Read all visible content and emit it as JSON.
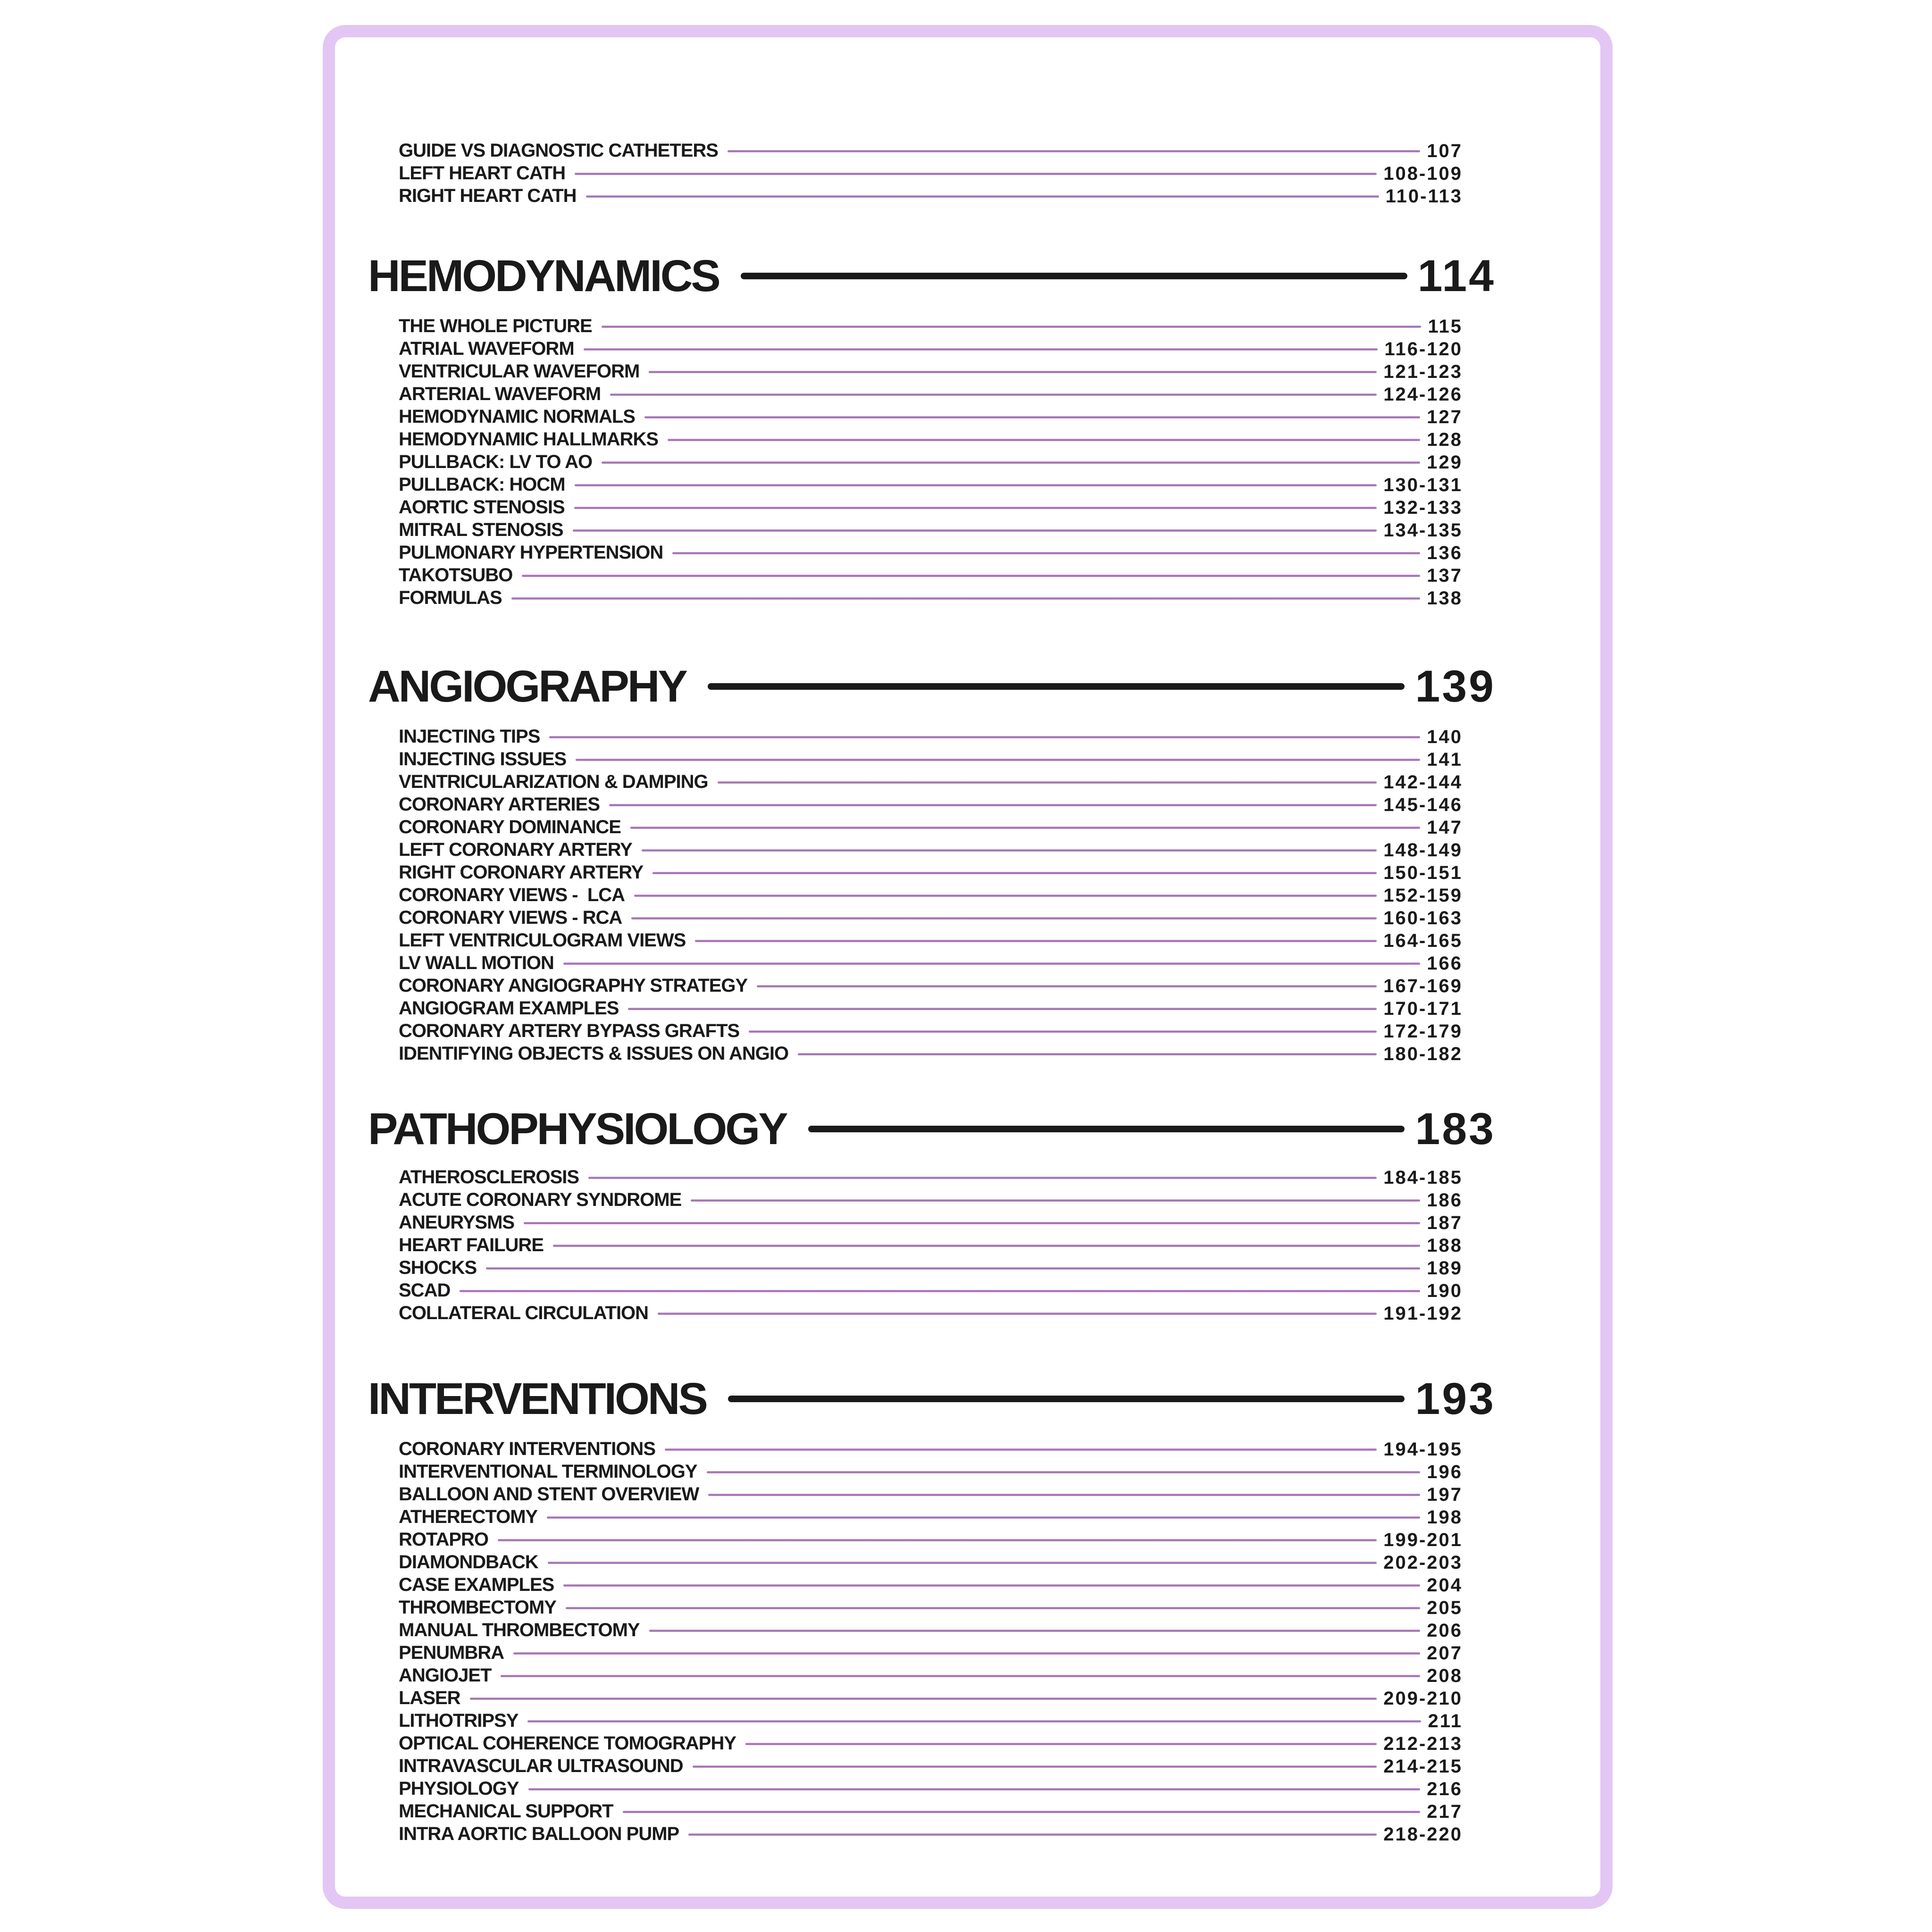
{
  "colors": {
    "background": "#ffffff",
    "frame_border": "#e3c6f4",
    "leader_line": "#9f6fae",
    "header_line": "#1a1a1a",
    "text": "#1a1a1a"
  },
  "toc": {
    "continued_entries": [
      {
        "label": "GUIDE VS DIAGNOSTIC CATHETERS",
        "pages": "107"
      },
      {
        "label": "LEFT HEART CATH",
        "pages": "108-109"
      },
      {
        "label": "RIGHT HEART CATH",
        "pages": "110-113"
      }
    ],
    "sections": [
      {
        "title": "HEMODYNAMICS",
        "page": "114",
        "entries": [
          {
            "label": "THE WHOLE PICTURE",
            "pages": "115"
          },
          {
            "label": "ATRIAL WAVEFORM",
            "pages": "116-120"
          },
          {
            "label": "VENTRICULAR WAVEFORM",
            "pages": "121-123"
          },
          {
            "label": "ARTERIAL WAVEFORM",
            "pages": "124-126"
          },
          {
            "label": "HEMODYNAMIC NORMALS",
            "pages": "127"
          },
          {
            "label": "HEMODYNAMIC HALLMARKS",
            "pages": "128"
          },
          {
            "label": "PULLBACK: LV TO AO",
            "pages": "129"
          },
          {
            "label": "PULLBACK: HOCM",
            "pages": "130-131"
          },
          {
            "label": "AORTIC STENOSIS",
            "pages": "132-133"
          },
          {
            "label": "MITRAL STENOSIS",
            "pages": "134-135"
          },
          {
            "label": "PULMONARY HYPERTENSION",
            "pages": "136"
          },
          {
            "label": "TAKOTSUBO",
            "pages": "137"
          },
          {
            "label": "FORMULAS",
            "pages": "138"
          }
        ]
      },
      {
        "title": "ANGIOGRAPHY",
        "page": "139",
        "entries": [
          {
            "label": "INJECTING TIPS",
            "pages": "140"
          },
          {
            "label": "INJECTING ISSUES",
            "pages": "141"
          },
          {
            "label": "VENTRICULARIZATION & DAMPING",
            "pages": "142-144"
          },
          {
            "label": "CORONARY ARTERIES",
            "pages": "145-146"
          },
          {
            "label": "CORONARY DOMINANCE",
            "pages": "147"
          },
          {
            "label": "LEFT CORONARY ARTERY",
            "pages": "148-149"
          },
          {
            "label": "RIGHT CORONARY ARTERY",
            "pages": "150-151"
          },
          {
            "label": "CORONARY VIEWS -  LCA",
            "pages": "152-159"
          },
          {
            "label": "CORONARY VIEWS - RCA",
            "pages": "160-163"
          },
          {
            "label": "LEFT VENTRICULOGRAM VIEWS",
            "pages": "164-165"
          },
          {
            "label": "LV WALL MOTION",
            "pages": "166"
          },
          {
            "label": "CORONARY ANGIOGRAPHY STRATEGY",
            "pages": "167-169"
          },
          {
            "label": "ANGIOGRAM EXAMPLES",
            "pages": "170-171"
          },
          {
            "label": "CORONARY ARTERY BYPASS GRAFTS",
            "pages": "172-179"
          },
          {
            "label": "IDENTIFYING OBJECTS & ISSUES ON ANGIO",
            "pages": "180-182"
          }
        ]
      },
      {
        "title": "PATHOPHYSIOLOGY",
        "page": "183",
        "entries": [
          {
            "label": "ATHEROSCLEROSIS",
            "pages": "184-185"
          },
          {
            "label": "ACUTE CORONARY SYNDROME",
            "pages": "186"
          },
          {
            "label": "ANEURYSMS",
            "pages": "187"
          },
          {
            "label": "HEART FAILURE",
            "pages": "188"
          },
          {
            "label": "SHOCKS",
            "pages": "189"
          },
          {
            "label": "SCAD",
            "pages": "190"
          },
          {
            "label": "COLLATERAL CIRCULATION",
            "pages": "191-192"
          }
        ]
      },
      {
        "title": "INTERVENTIONS",
        "page": "193",
        "entries": [
          {
            "label": "CORONARY INTERVENTIONS",
            "pages": "194-195"
          },
          {
            "label": "INTERVENTIONAL TERMINOLOGY",
            "pages": "196"
          },
          {
            "label": "BALLOON AND STENT OVERVIEW",
            "pages": "197"
          },
          {
            "label": "ATHERECTOMY",
            "pages": "198"
          },
          {
            "label": "ROTAPRO",
            "pages": "199-201"
          },
          {
            "label": "DIAMONDBACK",
            "pages": "202-203"
          },
          {
            "label": "CASE EXAMPLES",
            "pages": "204"
          },
          {
            "label": "THROMBECTOMY",
            "pages": "205"
          },
          {
            "label": "MANUAL THROMBECTOMY",
            "pages": "206"
          },
          {
            "label": "PENUMBRA",
            "pages": "207"
          },
          {
            "label": "ANGIOJET",
            "pages": "208"
          },
          {
            "label": "LASER",
            "pages": "209-210"
          },
          {
            "label": "LITHOTRIPSY",
            "pages": "211"
          },
          {
            "label": "OPTICAL COHERENCE TOMOGRAPHY",
            "pages": "212-213"
          },
          {
            "label": "INTRAVASCULAR ULTRASOUND",
            "pages": "214-215"
          },
          {
            "label": "PHYSIOLOGY",
            "pages": "216"
          },
          {
            "label": "MECHANICAL SUPPORT",
            "pages": "217"
          },
          {
            "label": "INTRA AORTIC BALLOON PUMP",
            "pages": "218-220"
          }
        ]
      }
    ]
  }
}
